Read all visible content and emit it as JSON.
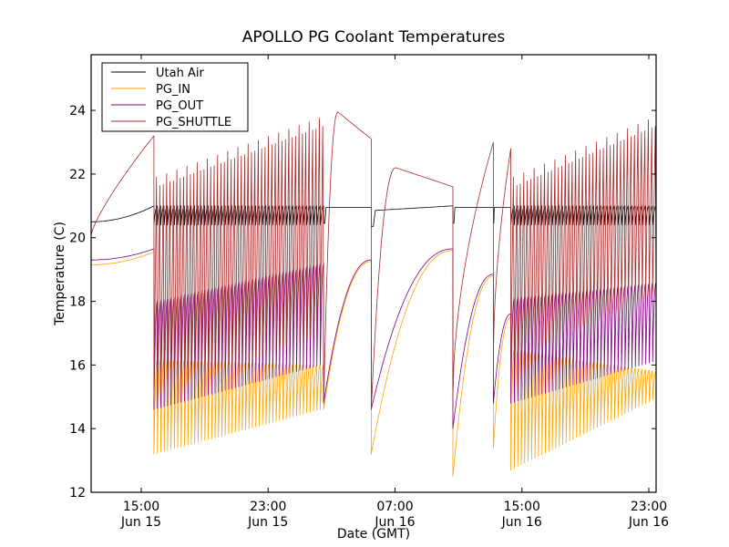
{
  "chart_data": {
    "type": "line",
    "title": "APOLLO PG Coolant Temperatures",
    "xlabel": "Date (GMT)",
    "ylabel": "Temperature (C)",
    "x_units": "hours since Jun 15 00:00 GMT",
    "xlim": [
      11.84,
      47.46
    ],
    "ylim": [
      12,
      25.75
    ],
    "grid": false,
    "legend_position": "upper-left",
    "x_ticks": [
      {
        "value": 15,
        "label_time": "15:00",
        "label_date": "Jun 15"
      },
      {
        "value": 23,
        "label_time": "23:00",
        "label_date": "Jun 15"
      },
      {
        "value": 31,
        "label_time": "07:00",
        "label_date": "Jun 16"
      },
      {
        "value": 39,
        "label_time": "15:00",
        "label_date": "Jun 16"
      },
      {
        "value": 47,
        "label_time": "23:00",
        "label_date": "Jun 16"
      }
    ],
    "y_ticks": [
      12,
      14,
      16,
      18,
      20,
      22,
      24
    ],
    "series": [
      {
        "name": "Utah Air",
        "color": "#000000"
      },
      {
        "name": "PG_IN",
        "color": "#ffa500"
      },
      {
        "name": "PG_OUT",
        "color": "#800080"
      },
      {
        "name": "PG_SHUTTLE",
        "color": "#a52a2a"
      }
    ],
    "segments": [
      {
        "kind": "drift",
        "t0": 11.84,
        "t1": 15.8,
        "utah_air": [
          20.5,
          21.0
        ],
        "pg_in": [
          19.15,
          19.55
        ],
        "pg_out": [
          19.3,
          19.65
        ],
        "pg_shuttle": [
          20.1,
          23.2
        ]
      },
      {
        "kind": "cycling",
        "t0": 15.8,
        "t1": 26.5,
        "cycles": 50,
        "utah_air_range": [
          20.4,
          21.0
        ],
        "shuttle_peak": [
          21.6,
          23.5
        ],
        "shuttle_trough": [
          15.0,
          17.0
        ],
        "out_peak": [
          18.0,
          19.2
        ],
        "out_trough": [
          14.6,
          16.0
        ],
        "in_trough": [
          13.2,
          14.6
        ],
        "in_peak": [
          16.2,
          16.0
        ]
      },
      {
        "kind": "recovery",
        "t0": 26.5,
        "t1": 29.5,
        "utah_air": 20.95,
        "shuttle_peak": 23.95,
        "shuttle_end": 23.1,
        "pg_in_start": 14.6,
        "pg_in_end": 19.25,
        "pg_out_start": 14.8,
        "pg_out_end": 19.3
      },
      {
        "kind": "recovery",
        "t0": 29.5,
        "t1": 34.65,
        "utah_air": 20.85,
        "utah_air_end": 21.0,
        "shuttle_peak": 22.2,
        "shuttle_end": 21.6,
        "drop_pg_in": 13.2,
        "drop_pg_out": 14.6,
        "pg_in_end": 19.6,
        "pg_out_end": 19.65
      },
      {
        "kind": "recovery",
        "t0": 34.65,
        "t1": 37.2,
        "utah_air": 20.95,
        "shuttle_end": 23.0,
        "drop_pg_in": 12.5,
        "drop_pg_out": 14.0,
        "drop_shuttle": 15.0,
        "pg_in_end": 18.8,
        "pg_out_end": 18.85
      },
      {
        "kind": "recovery",
        "t0": 37.2,
        "t1": 38.3,
        "utah_air": 20.95,
        "shuttle_end": 22.8,
        "drop_pg_in": 13.4,
        "drop_pg_out": 14.8,
        "drop_shuttle": 16.2,
        "pg_in_end": 17.5,
        "pg_out_end": 17.6
      },
      {
        "kind": "cycling",
        "t0": 38.3,
        "t1": 47.46,
        "cycles": 42,
        "utah_air_range": [
          20.4,
          21.0
        ],
        "shuttle_peak": [
          21.6,
          23.5
        ],
        "shuttle_trough": [
          16.2,
          18.2
        ],
        "out_peak": [
          18.1,
          18.6
        ],
        "out_trough": [
          14.8,
          16.1
        ],
        "in_trough": [
          12.7,
          14.9
        ],
        "in_peak": [
          16.5,
          15.8
        ]
      }
    ]
  }
}
